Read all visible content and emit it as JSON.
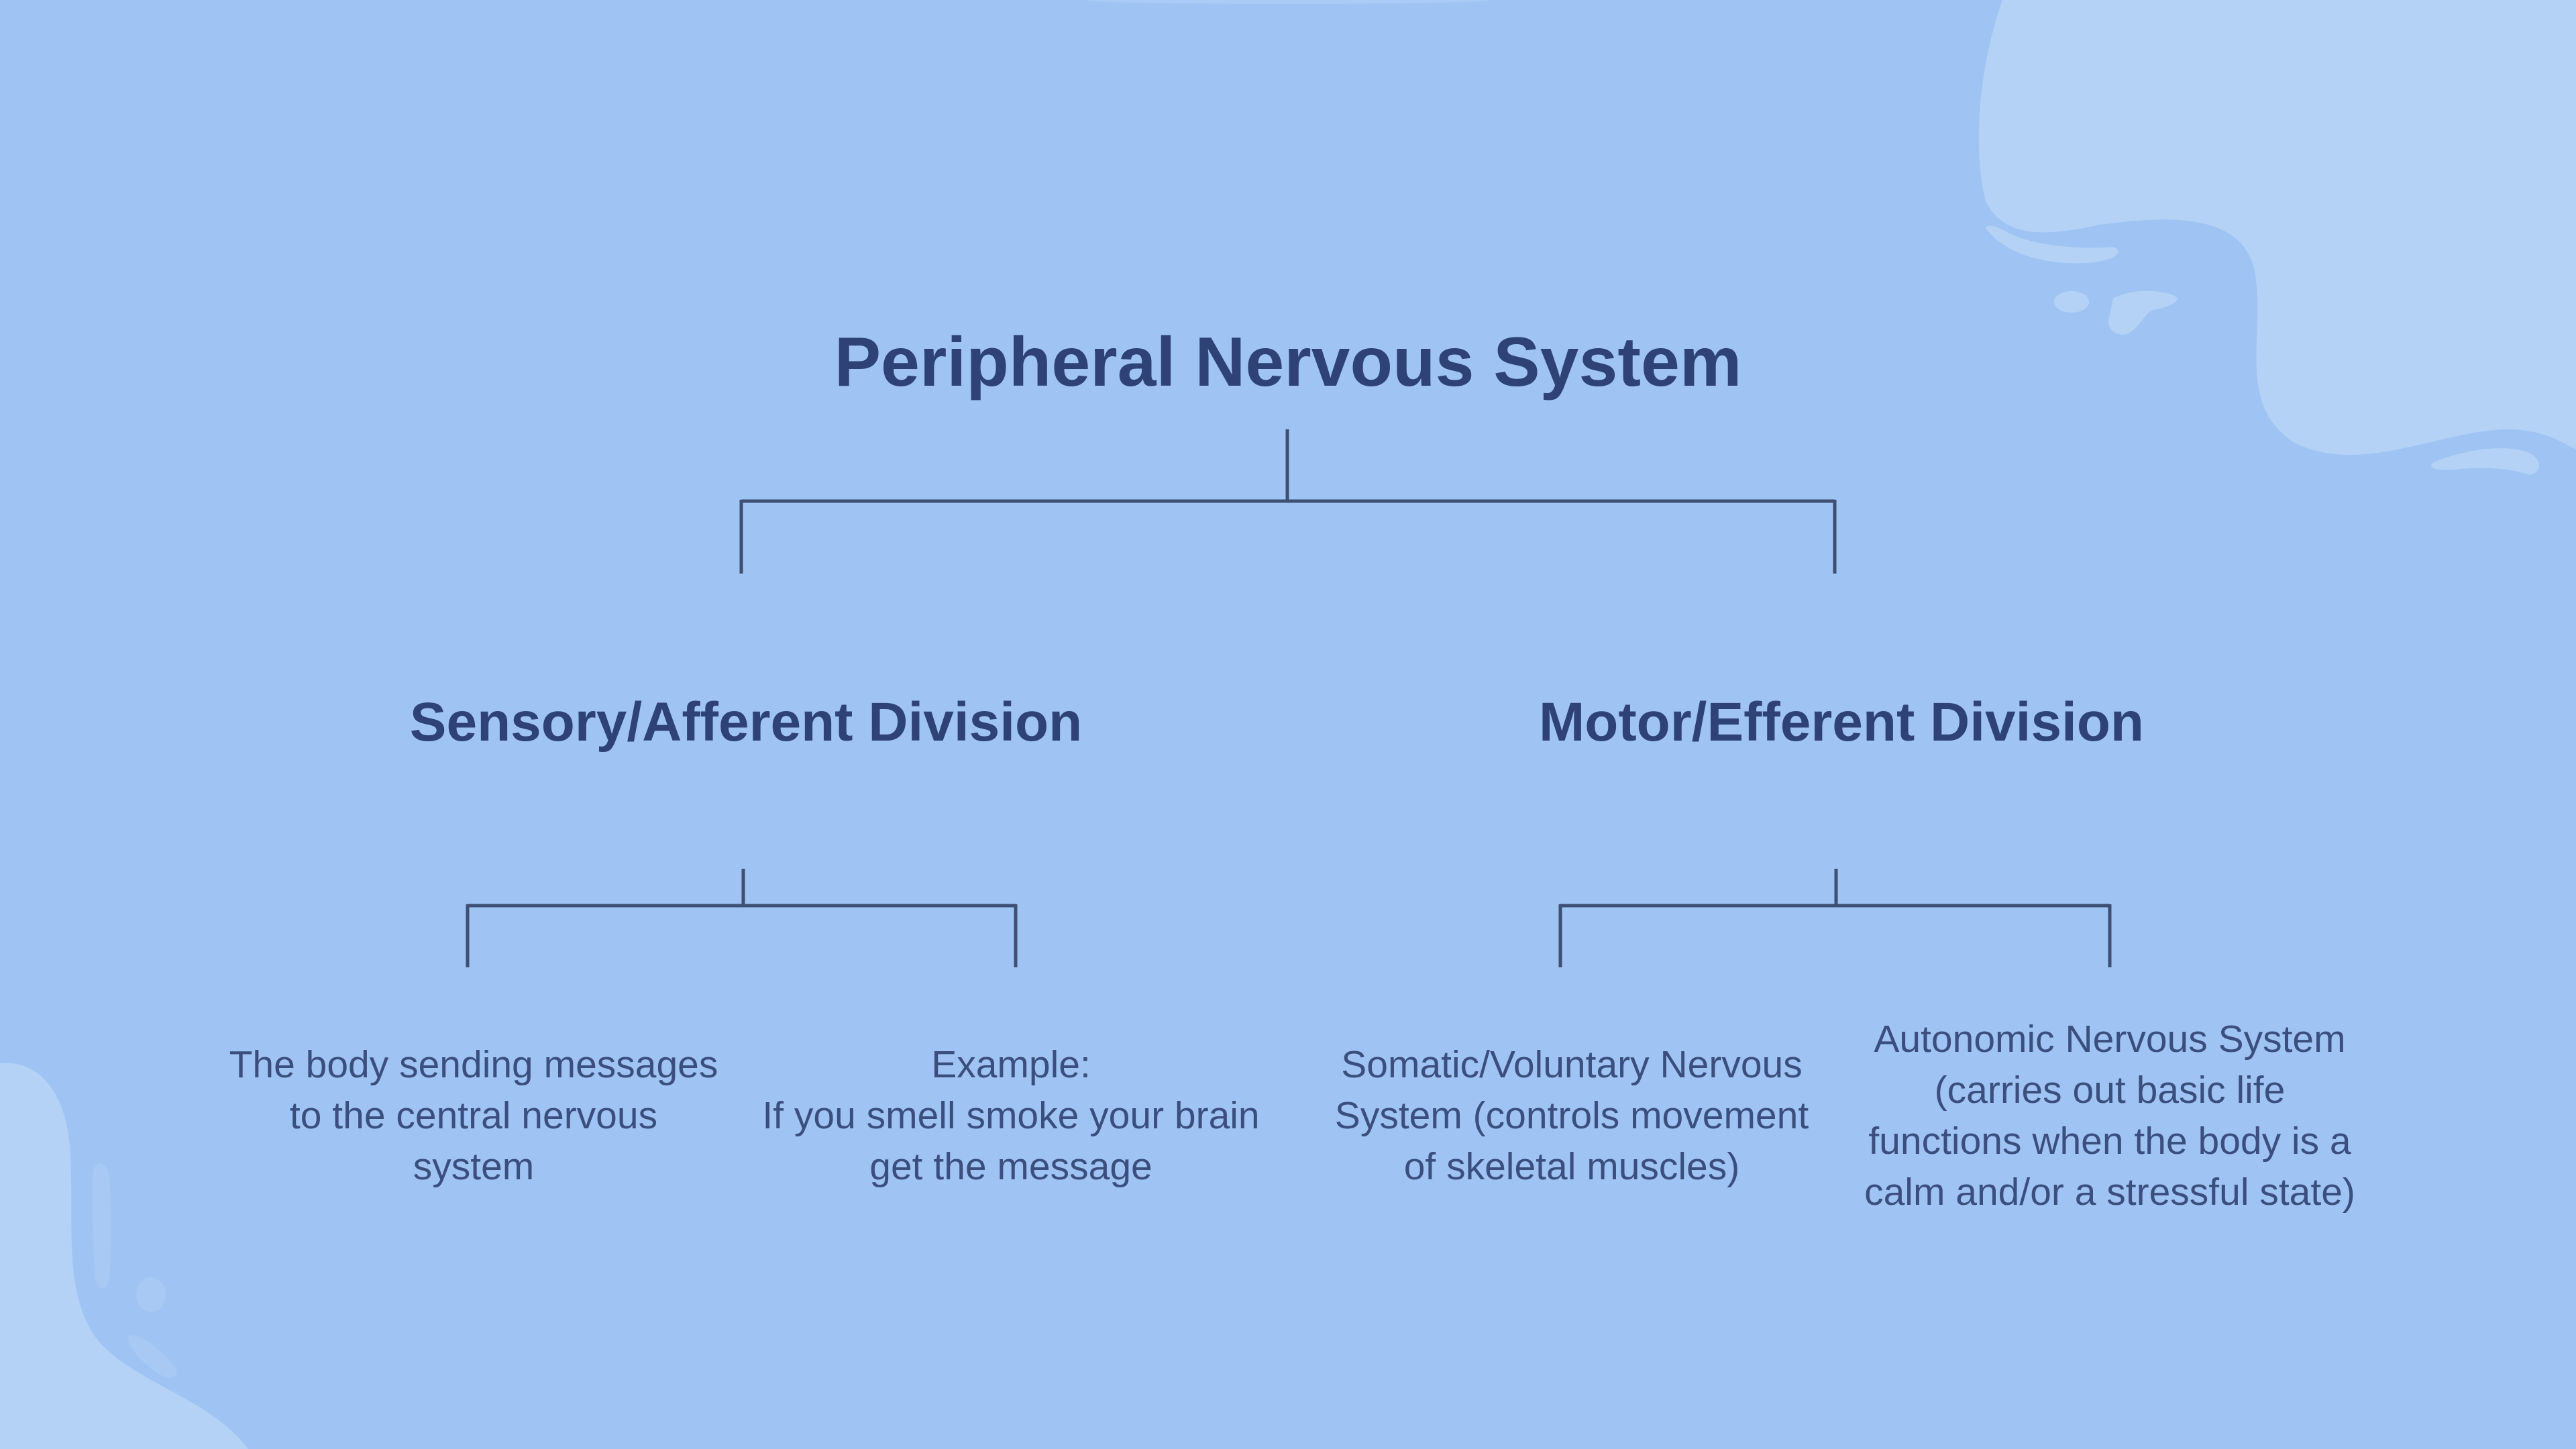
{
  "diagram": {
    "title": "Peripheral Nervous System",
    "divisions": [
      {
        "name": "Sensory/Afferent Division",
        "children": [
          {
            "lines": [
              "The body sending messages",
              "to the central nervous",
              "system"
            ]
          },
          {
            "lines": [
              "Example:",
              "If you smell smoke your brain",
              "get the message"
            ]
          }
        ]
      },
      {
        "name": "Motor/Efferent Division",
        "children": [
          {
            "lines": [
              "Somatic/Voluntary Nervous",
              "System (controls movement",
              "of skeletal muscles)"
            ]
          },
          {
            "lines": [
              "Autonomic Nervous System",
              "(carries out basic life",
              "functions when the body is a",
              "calm and/or a stressful state)"
            ]
          }
        ]
      }
    ]
  },
  "colors": {
    "background": "#9fc4f3",
    "blob": "#b3d2f6",
    "text": "#2e4275",
    "connector": "#3e4f73"
  }
}
